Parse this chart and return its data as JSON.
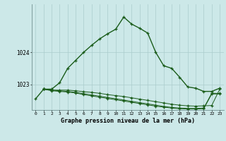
{
  "bg_color": "#cce8e8",
  "grid_color": "#aacccc",
  "line_color": "#1a5c1a",
  "xlim": [
    -0.5,
    23.5
  ],
  "ylim": [
    1022.2,
    1025.5
  ],
  "yticks": [
    1023,
    1024
  ],
  "xticks": [
    0,
    1,
    2,
    3,
    4,
    5,
    6,
    7,
    8,
    9,
    10,
    11,
    12,
    13,
    14,
    15,
    16,
    17,
    18,
    19,
    20,
    21,
    22,
    23
  ],
  "xlabel": "Graphe pression niveau de la mer (hPa)",
  "series1_x": [
    0,
    1,
    2,
    3,
    4,
    5,
    6,
    7,
    8,
    9,
    10,
    11,
    12,
    13,
    14,
    15,
    16,
    17,
    18,
    19,
    20,
    21,
    22,
    23
  ],
  "series1_y": [
    1022.55,
    1022.85,
    1022.85,
    1023.05,
    1023.5,
    1023.75,
    1024.0,
    1024.22,
    1024.42,
    1024.58,
    1024.72,
    1025.1,
    1024.88,
    1024.75,
    1024.6,
    1024.0,
    1023.58,
    1023.5,
    1023.22,
    1022.92,
    1022.88,
    1022.78,
    1022.78,
    1022.88
  ],
  "series2_x": [
    1,
    2,
    3,
    4,
    5,
    6,
    7,
    8,
    9,
    10,
    11,
    12,
    13,
    14,
    15,
    16,
    17,
    18,
    19,
    20,
    21,
    22,
    23
  ],
  "series2_y": [
    1022.85,
    1022.82,
    1022.82,
    1022.82,
    1022.8,
    1022.77,
    1022.75,
    1022.72,
    1022.68,
    1022.65,
    1022.62,
    1022.58,
    1022.54,
    1022.5,
    1022.46,
    1022.42,
    1022.38,
    1022.35,
    1022.33,
    1022.32,
    1022.33,
    1022.34,
    1022.85
  ],
  "series3_x": [
    1,
    2,
    3,
    4,
    5,
    6,
    7,
    8,
    9,
    10,
    11,
    12,
    13,
    14,
    15,
    16,
    17,
    18,
    19,
    20,
    21,
    22,
    23
  ],
  "series3_y": [
    1022.85,
    1022.82,
    1022.8,
    1022.78,
    1022.75,
    1022.71,
    1022.67,
    1022.63,
    1022.59,
    1022.55,
    1022.51,
    1022.47,
    1022.43,
    1022.39,
    1022.35,
    1022.31,
    1022.28,
    1022.26,
    1022.25,
    1022.25,
    1022.26,
    1022.72,
    1022.72
  ],
  "series4_x": [
    1,
    2,
    3,
    4,
    5,
    6,
    7,
    8,
    9,
    10,
    11,
    12,
    13,
    14,
    15,
    16,
    17,
    18,
    19,
    20,
    21,
    22,
    23
  ],
  "series4_y": [
    1022.85,
    1022.8,
    1022.78,
    1022.76,
    1022.73,
    1022.68,
    1022.64,
    1022.6,
    1022.56,
    1022.52,
    1022.48,
    1022.44,
    1022.4,
    1022.36,
    1022.32,
    1022.29,
    1022.26,
    1022.24,
    1022.23,
    1022.23,
    1022.24,
    1022.7,
    1022.7
  ]
}
